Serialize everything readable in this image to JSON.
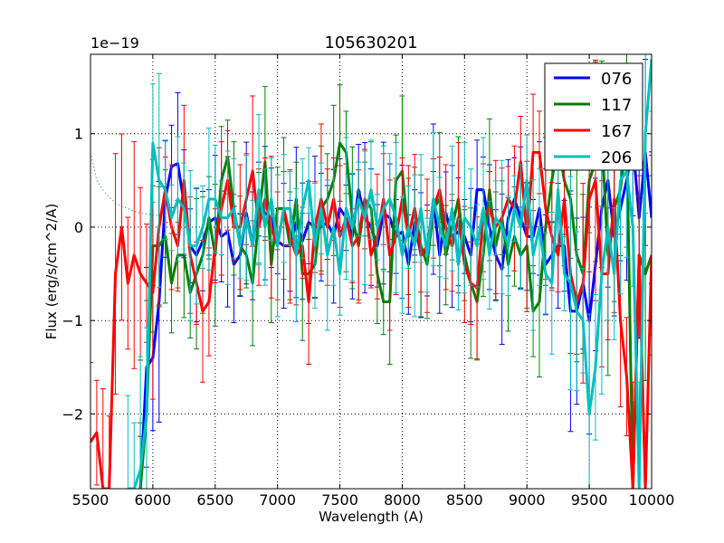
{
  "chart_data": {
    "type": "line",
    "title": "105630201",
    "xlabel": "Wavelength (A)",
    "ylabel": "Flux (erg/s/cm^2/A)",
    "y_offset_label": "1e−19",
    "xlim": [
      5500,
      10000
    ],
    "ylim": [
      -2.8,
      1.85
    ],
    "xticks": [
      5500,
      6000,
      6500,
      7000,
      7500,
      8000,
      8500,
      9000,
      9500,
      10000
    ],
    "xtick_labels": [
      "5500",
      "6000",
      "6500",
      "7000",
      "7500",
      "8000",
      "8500",
      "9000",
      "9500",
      "10000"
    ],
    "yticks": [
      1,
      0,
      -1,
      -2
    ],
    "ytick_labels": [
      "1",
      "0",
      "−1",
      "−2"
    ],
    "grid": true,
    "legend_position": "top-right",
    "series": [
      {
        "name": "076",
        "color": "#0000ff",
        "x": [
          5900,
          5950,
          6000,
          6050,
          6100,
          6150,
          6200,
          6250,
          6300,
          6350,
          6400,
          6450,
          6500,
          6550,
          6600,
          6650,
          6700,
          6750,
          6800,
          6850,
          6900,
          6950,
          7000,
          7050,
          7100,
          7150,
          7200,
          7250,
          7300,
          7350,
          7400,
          7450,
          7500,
          7550,
          7600,
          7650,
          7700,
          7750,
          7800,
          7850,
          7900,
          7950,
          8000,
          8050,
          8100,
          8150,
          8200,
          8250,
          8300,
          8350,
          8400,
          8450,
          8500,
          8550,
          8600,
          8650,
          8700,
          8750,
          8800,
          8850,
          8900,
          8950,
          9000,
          9050,
          9100,
          9150,
          9200,
          9250,
          9300,
          9350,
          9400,
          9450,
          9500,
          9550,
          9600,
          9650,
          9700,
          9750,
          9800,
          9850,
          9900,
          9950,
          10000
        ],
        "y": [
          -2.8,
          -1.5,
          -1.4,
          -0.8,
          0.3,
          0.65,
          0.68,
          0.25,
          -0.2,
          -0.3,
          -0.15,
          0.05,
          0.1,
          -0.1,
          -0.05,
          -0.4,
          -0.3,
          0.15,
          -0.2,
          0.3,
          0.15,
          0.1,
          -0.15,
          -0.2,
          -0.2,
          0.05,
          -0.15,
          0.05,
          0.0,
          0.0,
          0.05,
          -0.1,
          0.2,
          0.1,
          -0.1,
          0.4,
          0.1,
          0.0,
          -0.2,
          0.15,
          0.1,
          -0.1,
          -0.05,
          -0.4,
          0.05,
          -0.3,
          -0.25,
          0.3,
          -0.3,
          0.15,
          -0.1,
          -0.05,
          -0.1,
          -0.3,
          0.4,
          0.4,
          0.0,
          -0.3,
          -0.45,
          0.1,
          0.3,
          0.1,
          -0.1,
          -0.1,
          0.2,
          -0.4,
          -0.3,
          -0.2,
          -0.2,
          -0.9,
          -0.9,
          -0.6,
          -1.0,
          -0.4,
          0.2,
          0.5,
          -0.1,
          0.2,
          0.5,
          0.9,
          0.1,
          0.8,
          0.1
        ]
      },
      {
        "name": "117",
        "color": "#008000",
        "x": [
          5900,
          5950,
          6000,
          6050,
          6100,
          6150,
          6200,
          6250,
          6300,
          6350,
          6400,
          6450,
          6500,
          6550,
          6600,
          6650,
          6700,
          6750,
          6800,
          6850,
          6900,
          6950,
          7000,
          7050,
          7100,
          7150,
          7200,
          7250,
          7300,
          7350,
          7400,
          7450,
          7500,
          7550,
          7600,
          7650,
          7700,
          7750,
          7800,
          7850,
          7900,
          7950,
          8000,
          8050,
          8100,
          8150,
          8200,
          8250,
          8300,
          8350,
          8400,
          8450,
          8500,
          8550,
          8600,
          8650,
          8700,
          8750,
          8800,
          8850,
          8900,
          8950,
          9000,
          9050,
          9100,
          9150,
          9200,
          9250,
          9300,
          9350,
          9400,
          9450,
          9500,
          9550,
          9600,
          9650,
          9700,
          9750,
          9800,
          9850,
          9900,
          9950,
          10000
        ],
        "y": [
          -2.8,
          -2.0,
          -0.2,
          -0.2,
          -0.1,
          -0.6,
          -0.3,
          -0.3,
          -0.7,
          -0.5,
          -0.3,
          0.1,
          -0.3,
          0.5,
          0.75,
          0.2,
          -0.2,
          -0.3,
          -0.6,
          0.1,
          0.7,
          -0.4,
          0.2,
          0.2,
          -0.2,
          0.3,
          -0.5,
          -0.5,
          -0.4,
          0.2,
          0.3,
          0.5,
          0.9,
          0.8,
          0.1,
          -0.2,
          0.3,
          0.2,
          -0.5,
          -0.8,
          -0.8,
          0.5,
          0.6,
          -0.1,
          0.2,
          -0.2,
          -0.4,
          0.2,
          0.3,
          -0.3,
          0.0,
          0.3,
          -0.3,
          -0.6,
          -0.8,
          -0.3,
          0.4,
          -0.2,
          0.1,
          -0.4,
          -0.1,
          -0.3,
          -0.2,
          -0.9,
          -0.8,
          0.0,
          0.5,
          0.9,
          0.5,
          0.3,
          -0.3,
          -0.5,
          0.5,
          0.7,
          1.0,
          -0.3,
          0.2,
          0.4,
          1.0,
          -2.8,
          -0.3,
          -0.5,
          -0.3
        ]
      },
      {
        "name": "167",
        "color": "#ff0000",
        "x": [
          5500,
          5550,
          5600,
          5650,
          5700,
          5750,
          5800,
          5850,
          5900,
          5950,
          6000,
          6050,
          6100,
          6150,
          6200,
          6250,
          6300,
          6350,
          6400,
          6450,
          6500,
          6550,
          6600,
          6650,
          6700,
          6750,
          6800,
          6850,
          6900,
          6950,
          7000,
          7050,
          7100,
          7150,
          7200,
          7250,
          7300,
          7350,
          7400,
          7450,
          7500,
          7550,
          7600,
          7650,
          7700,
          7750,
          7800,
          7850,
          7900,
          7950,
          8000,
          8050,
          8100,
          8150,
          8200,
          8250,
          8300,
          8350,
          8400,
          8450,
          8500,
          8550,
          8600,
          8650,
          8700,
          8750,
          8800,
          8850,
          8900,
          8950,
          9000,
          9050,
          9100,
          9150,
          9200,
          9250,
          9300,
          9350,
          9400,
          9450,
          9500,
          9550,
          9600,
          9650,
          9700,
          9750,
          9800,
          9850,
          9900,
          9950,
          10000
        ],
        "y": [
          -2.3,
          -2.2,
          -2.8,
          -2.8,
          -0.5,
          0.0,
          -0.6,
          -0.3,
          -0.5,
          -0.6,
          -0.7,
          0.0,
          0.4,
          0.0,
          -0.2,
          0.5,
          -0.3,
          -0.6,
          -0.9,
          -0.8,
          -0.2,
          0.2,
          0.5,
          0.0,
          0.0,
          0.3,
          0.6,
          0.0,
          0.3,
          0.0,
          -0.2,
          0.2,
          -0.1,
          -0.3,
          -0.2,
          -0.8,
          0.0,
          0.3,
          0.0,
          0.3,
          -0.1,
          0.1,
          -0.2,
          -0.1,
          0.3,
          -0.3,
          -0.1,
          0.3,
          -0.3,
          -0.1,
          0.3,
          -0.1,
          0.2,
          -0.3,
          -0.2,
          0.2,
          0.4,
          0.0,
          -0.2,
          0.1,
          -0.4,
          -0.6,
          -0.65,
          0.1,
          0.2,
          0.0,
          0.1,
          0.3,
          0.2,
          0.7,
          -0.1,
          0.8,
          0.8,
          0.2,
          -0.1,
          -0.3,
          0.3,
          -0.5,
          -0.8,
          -0.6,
          0.3,
          0.5,
          -0.5,
          -0.5,
          0.3,
          -1.0,
          -1.6,
          -2.8,
          -0.3,
          -2.8,
          -0.3
        ]
      },
      {
        "name": "206",
        "color": "#00bfbf",
        "x": [
          5800,
          5850,
          5900,
          5950,
          6000,
          6050,
          6100,
          6150,
          6200,
          6250,
          6300,
          6350,
          6400,
          6450,
          6500,
          6550,
          6600,
          6650,
          6700,
          6750,
          6800,
          6850,
          6900,
          6950,
          7000,
          7050,
          7100,
          7150,
          7200,
          7250,
          7300,
          7350,
          7400,
          7450,
          7500,
          7550,
          7600,
          7650,
          7700,
          7750,
          7800,
          7850,
          7900,
          7950,
          8000,
          8050,
          8100,
          8150,
          8200,
          8250,
          8300,
          8350,
          8400,
          8450,
          8500,
          8550,
          8600,
          8650,
          8700,
          8750,
          8800,
          8850,
          8900,
          8950,
          9000,
          9050,
          9100,
          9150,
          9200,
          9250,
          9300,
          9350,
          9400,
          9450,
          9500,
          9550,
          9600,
          9650,
          9700,
          9750,
          9800,
          9850,
          9900,
          9950,
          10000
        ],
        "y": [
          -2.8,
          -2.8,
          -2.6,
          -2.0,
          0.9,
          0.5,
          0.4,
          0.1,
          0.3,
          0.2,
          -0.2,
          -0.2,
          0.0,
          0.3,
          0.3,
          0.1,
          0.1,
          0.2,
          -0.2,
          0.1,
          -0.2,
          0.4,
          0.0,
          0.3,
          -0.2,
          0.2,
          0.2,
          -0.3,
          0.2,
          0.5,
          -0.2,
          0.2,
          -0.3,
          0.0,
          -0.5,
          0.2,
          0.0,
          0.3,
          0.1,
          0.4,
          0.0,
          0.2,
          0.3,
          0.1,
          -0.3,
          0.0,
          -0.2,
          0.2,
          -0.3,
          0.3,
          0.0,
          -0.2,
          0.2,
          -0.4,
          0.1,
          0.0,
          -0.2,
          0.2,
          -0.3,
          0.1,
          0.0,
          -0.2,
          0.2,
          0.0,
          0.5,
          -0.3,
          0.0,
          -0.5,
          -0.6,
          0.4,
          -0.5,
          -0.6,
          -0.9,
          -1.0,
          -2.0,
          -1.5,
          -0.5,
          0.0,
          -0.5,
          0.5,
          0.6,
          0.0,
          -2.8,
          1.0,
          1.8
        ]
      }
    ],
    "model_curve": {
      "name": "dotted model",
      "color": "#008000",
      "x": [
        5500,
        5550,
        5600,
        5650,
        5700,
        5750,
        5800,
        5850,
        5900,
        5950,
        6000,
        6050,
        6100
      ],
      "y": [
        0.8,
        0.5,
        0.4,
        0.32,
        0.26,
        0.22,
        0.2,
        0.17,
        0.15,
        0.14,
        0.13,
        0.12,
        0.12
      ]
    }
  }
}
